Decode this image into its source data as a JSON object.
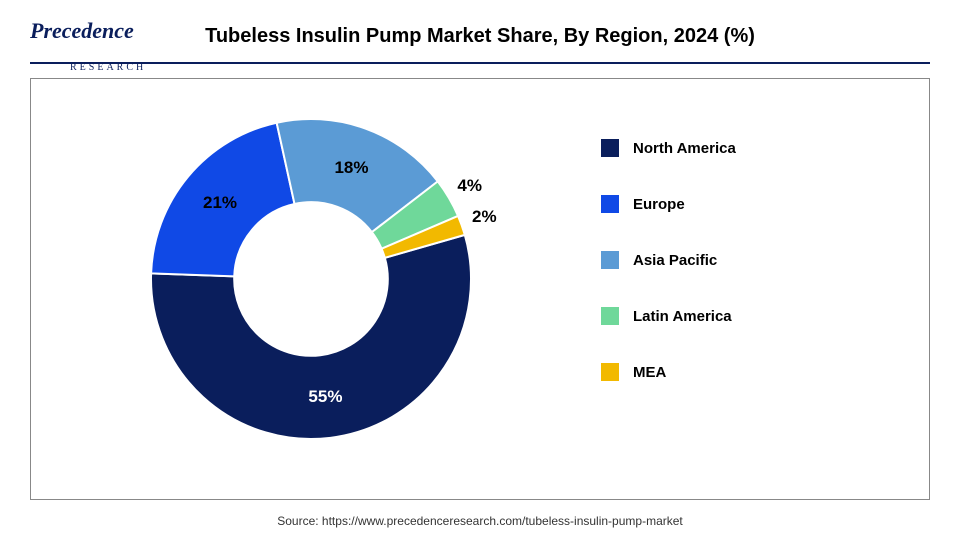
{
  "logo": {
    "main": "Precedence",
    "sub": "RESEARCH"
  },
  "title": "Tubeless Insulin Pump Market Share, By Region, 2024 (%)",
  "source": "Source: https://www.precedenceresearch.com/tubeless-insulin-pump-market",
  "chart": {
    "type": "donut",
    "inner_radius_ratio": 0.48,
    "background_color": "#ffffff",
    "start_angle_deg": 74,
    "direction": "clockwise",
    "label_fontsize": 17,
    "label_fontweight": "bold",
    "slices": [
      {
        "label": "North America",
        "value": 55,
        "color": "#0a1e5c",
        "display": "55%"
      },
      {
        "label": "Europe",
        "value": 21,
        "color": "#1049e6",
        "display": "21%"
      },
      {
        "label": "Asia Pacific",
        "value": 18,
        "color": "#5b9bd5",
        "display": "18%"
      },
      {
        "label": "Latin America",
        "value": 4,
        "color": "#6fd89a",
        "display": "4%"
      },
      {
        "label": "MEA",
        "value": 2,
        "color": "#f2b900",
        "display": "2%"
      }
    ]
  },
  "legend_fontsize": 15
}
